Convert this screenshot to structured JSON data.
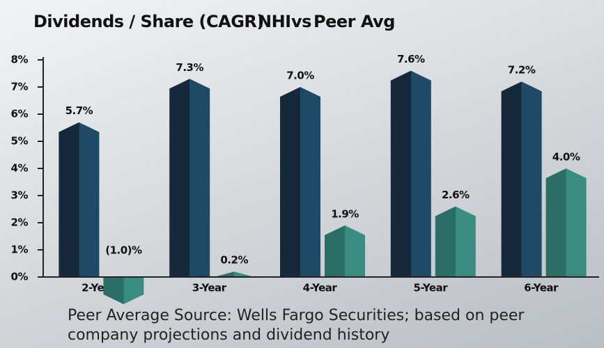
{
  "chart_data": {
    "type": "bar",
    "title": "Dividends / Share (CAGR)",
    "legend_separator": "vs",
    "categories": [
      "2-Year",
      "3-Year",
      "4-Year",
      "5-Year",
      "6-Year"
    ],
    "series": [
      {
        "name": "NHI",
        "color": "#1f4a66",
        "shade": "#15293a",
        "values": [
          5.7,
          7.3,
          7.0,
          7.6,
          7.2
        ],
        "value_labels": [
          "5.7%",
          "7.3%",
          "7.0%",
          "7.6%",
          "7.2%"
        ]
      },
      {
        "name": "Peer Avg",
        "color": "#3a8c80",
        "shade": "#2a6e66",
        "values": [
          -1.0,
          0.2,
          1.9,
          2.6,
          4.0
        ],
        "value_labels": [
          "(1.0)%",
          "0.2%",
          "1.9%",
          "2.6%",
          "4.0%"
        ]
      }
    ],
    "ylim": [
      0,
      8
    ],
    "yticks": [
      {
        "value": 0,
        "label": "0%"
      },
      {
        "value": 1,
        "label": "1%"
      },
      {
        "value": 2,
        "label": "2%"
      },
      {
        "value": 3,
        "label": "3%"
      },
      {
        "value": 4,
        "label": "4%"
      },
      {
        "value": 5,
        "label": "5%"
      },
      {
        "value": 6,
        "label": "6%"
      },
      {
        "value": 7,
        "label": "7%"
      },
      {
        "value": 8,
        "label": "8%"
      }
    ],
    "note": "Peer Average Source: Wells Fargo Securities; based on peer company projections and dividend history"
  }
}
